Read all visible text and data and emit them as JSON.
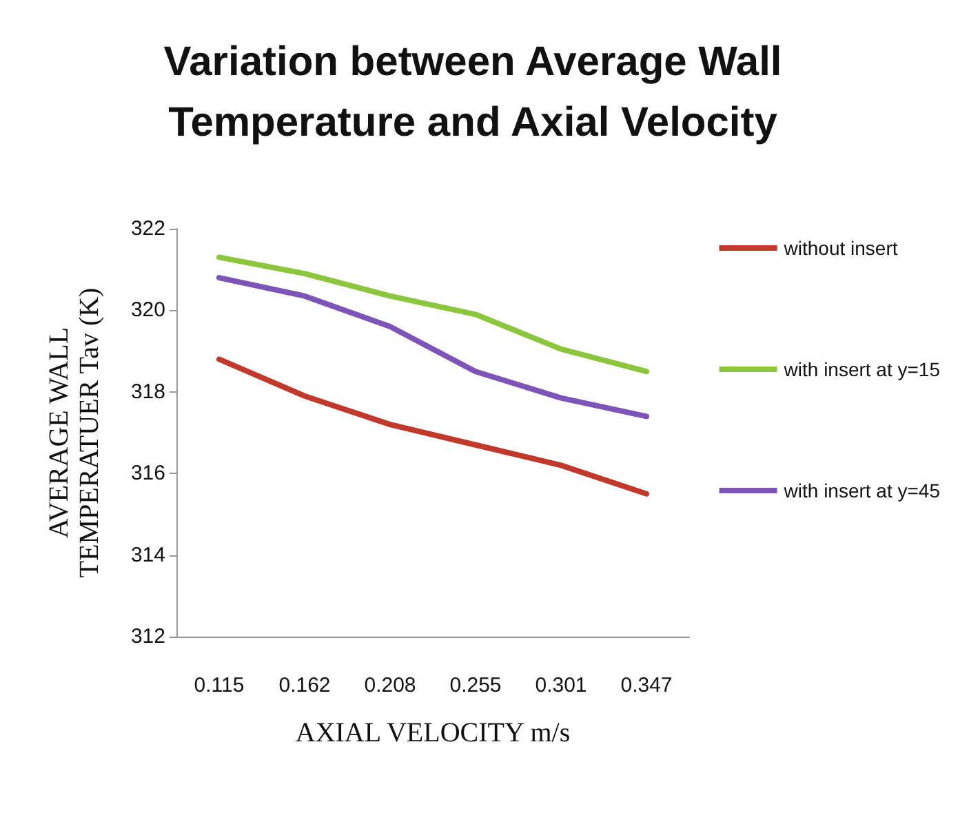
{
  "chart_data": {
    "type": "line",
    "title": "Variation between Average Wall\nTemperature and Axial Velocity",
    "xlabel": "AXIAL VELOCITY m/s",
    "ylabel": "AVERAGE WALL\nTEMPERATUER Tav (K)",
    "categories": [
      "0.115",
      "0.162",
      "0.208",
      "0.255",
      "0.301",
      "0.347"
    ],
    "series": [
      {
        "name": "without insert",
        "color": "#c0392b",
        "values": [
          318.8,
          317.9,
          317.2,
          316.7,
          316.2,
          315.5
        ]
      },
      {
        "name": "with insert at y=15",
        "color": "#8cc63f",
        "values": [
          321.3,
          320.9,
          320.35,
          319.9,
          319.05,
          318.5
        ]
      },
      {
        "name": "with insert at y=45",
        "color": "#7d55b8",
        "values": [
          320.8,
          320.35,
          319.6,
          318.5,
          317.85,
          317.4
        ]
      }
    ],
    "ylim": [
      312,
      322
    ],
    "yticks": [
      312,
      314,
      316,
      318,
      320,
      322
    ],
    "grid": false,
    "legend": "right",
    "marker": "none",
    "line_style": "solid"
  }
}
